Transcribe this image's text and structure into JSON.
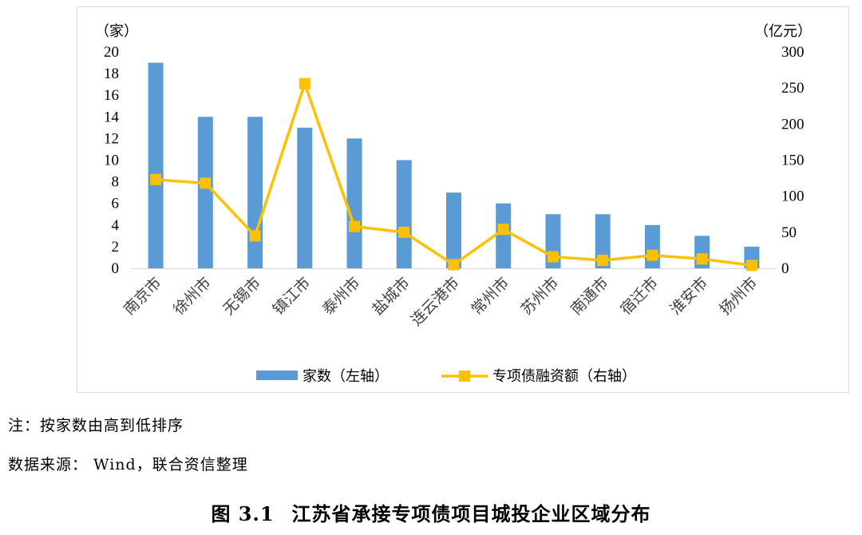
{
  "chart_data": {
    "type": "bar",
    "categories": [
      "南京市",
      "徐州市",
      "无锡市",
      "镇江市",
      "泰州市",
      "盐城市",
      "连云港市",
      "常州市",
      "苏州市",
      "南通市",
      "宿迁市",
      "淮安市",
      "扬州市"
    ],
    "series": [
      {
        "name": "家数（左轴）",
        "type": "bar",
        "axis": "left",
        "color": "#5b9bd5",
        "values": [
          19,
          14,
          14,
          13,
          12,
          10,
          7,
          6,
          5,
          5,
          4,
          3,
          2
        ]
      },
      {
        "name": "专项债融资额（右轴）",
        "type": "line",
        "axis": "right",
        "color": "#ffc000",
        "values": [
          123,
          118,
          45,
          256,
          58,
          50,
          5,
          54,
          16,
          11,
          18,
          13,
          4
        ]
      }
    ],
    "y_left": {
      "unit": "（家）",
      "min": 0,
      "max": 20,
      "ticks": [
        "0",
        "2",
        "4",
        "6",
        "8",
        "10",
        "12",
        "14",
        "16",
        "18",
        "20"
      ]
    },
    "y_right": {
      "unit": "（亿元）",
      "min": 0,
      "max": 300,
      "ticks": [
        "0",
        "50",
        "100",
        "150",
        "200",
        "250",
        "300"
      ]
    },
    "grid": false,
    "legend_position": "bottom"
  },
  "notes": {
    "sort": "注：按家数由高到低排序",
    "source": "数据来源：  Wind，联合资信整理"
  },
  "caption": {
    "number": "图 3.1",
    "title": "江苏省承接专项债项目城投企业区域分布"
  }
}
